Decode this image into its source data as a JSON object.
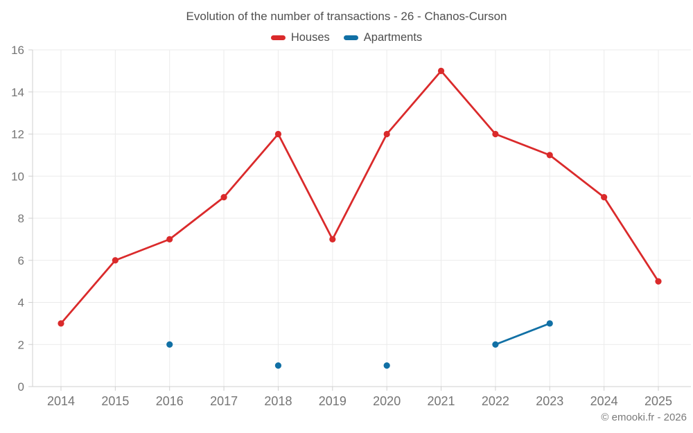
{
  "chart_data": {
    "type": "line",
    "title": "Evolution of the number of transactions - 26 - Chanos-Curson",
    "x": [
      2014,
      2015,
      2016,
      2017,
      2018,
      2019,
      2020,
      2021,
      2022,
      2023,
      2024,
      2025
    ],
    "series": [
      {
        "name": "Houses",
        "color": "#da2a2b",
        "values": [
          3,
          6,
          7,
          9,
          12,
          7,
          12,
          15,
          12,
          11,
          9,
          5
        ]
      },
      {
        "name": "Apartments",
        "color": "#1170a5",
        "values": [
          null,
          null,
          2,
          null,
          1,
          null,
          1,
          null,
          2,
          3,
          null,
          null
        ]
      }
    ],
    "xlabel": "",
    "ylabel": "",
    "ylim": [
      0,
      16
    ],
    "yticks": [
      0,
      2,
      4,
      6,
      8,
      10,
      12,
      14,
      16
    ],
    "grid": true,
    "legend_position": "top"
  },
  "footer": {
    "credit": "© emooki.fr - 2026"
  },
  "colors": {
    "background": "#ffffff",
    "grid": "#ebebeb",
    "axis": "#cfcfcf",
    "axis_text": "#757575",
    "title_text": "#4f4f4f"
  }
}
